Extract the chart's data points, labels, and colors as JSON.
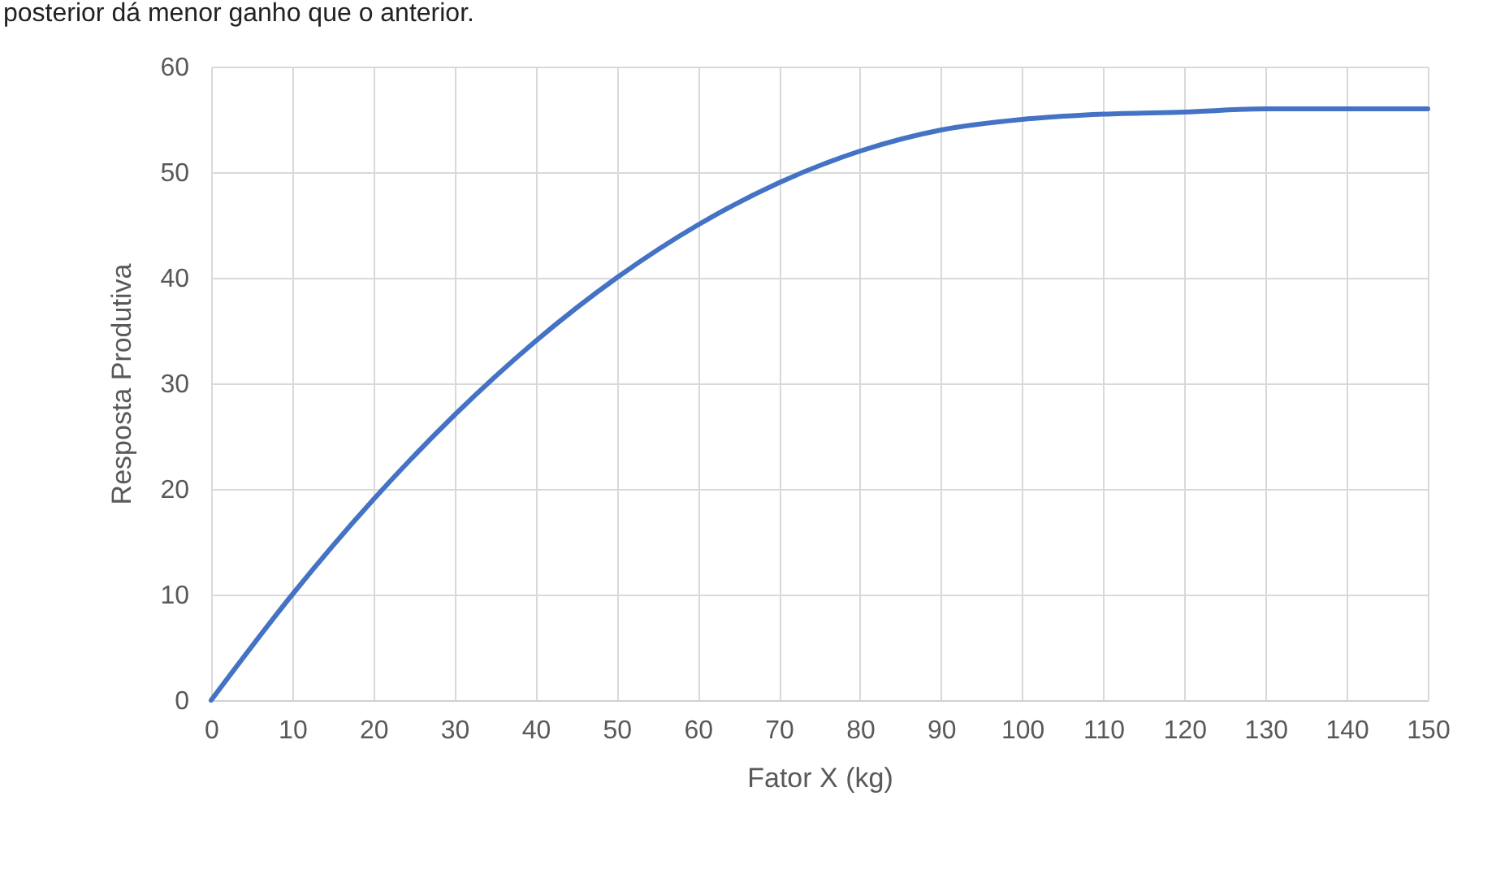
{
  "chart_data": {
    "type": "line",
    "xlabel": "Fator X (kg)",
    "ylabel": "Resposta Produtiva",
    "annotations": [
      "posterior dá menor ganho que o anterior."
    ],
    "x": [
      0,
      10,
      20,
      30,
      40,
      50,
      60,
      70,
      80,
      90,
      100,
      110,
      120,
      130,
      140,
      150
    ],
    "series": [
      {
        "color": "#4472c4",
        "values": [
          0,
          10,
          19,
          27,
          34,
          40,
          45,
          49,
          52,
          54,
          55,
          55.5,
          55.7,
          56,
          56,
          56
        ]
      }
    ],
    "xlim": [
      0,
      150
    ],
    "xticks": [
      0,
      10,
      20,
      30,
      40,
      50,
      60,
      70,
      80,
      90,
      100,
      110,
      120,
      130,
      140,
      150
    ],
    "ylim": [
      0,
      60
    ],
    "yticks": [
      0,
      10,
      20,
      30,
      40,
      50,
      60
    ],
    "grid": true,
    "legend": false,
    "marker": "none",
    "line_style": "solid"
  }
}
